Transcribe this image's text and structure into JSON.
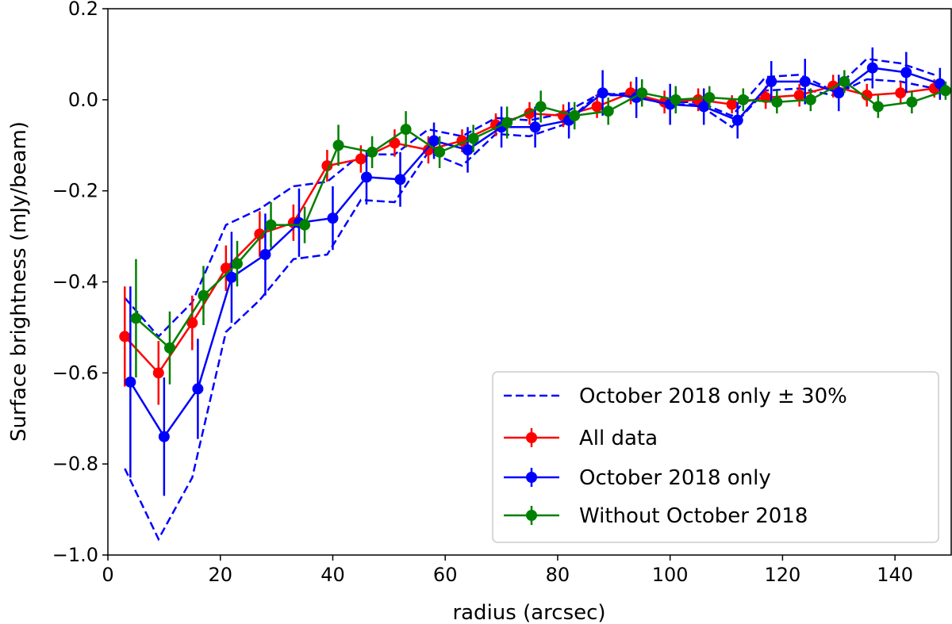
{
  "chart_data": {
    "type": "line",
    "title": "",
    "xlabel": "radius (arcsec)",
    "ylabel": "Surface brightness (mJy/beam)",
    "xlim": [
      0,
      150
    ],
    "ylim": [
      -1.0,
      0.2
    ],
    "x_ticks": [
      0,
      20,
      40,
      60,
      80,
      100,
      120,
      140
    ],
    "y_ticks": [
      -1.0,
      -0.8,
      -0.6,
      -0.4,
      -0.2,
      0.0,
      0.2
    ],
    "x_tick_labels": [
      "0",
      "20",
      "40",
      "60",
      "80",
      "100",
      "120",
      "140"
    ],
    "y_tick_labels": [
      "−1.0",
      "−0.8",
      "−0.6",
      "−0.4",
      "−0.2",
      "0.0",
      "0.2"
    ],
    "grid": false,
    "legend_position": "lower-right",
    "band": {
      "name": "October 2018 only ± 30%",
      "color": "#0000ff",
      "upper": [
        [
          3,
          -0.435
        ],
        [
          9,
          -0.52
        ],
        [
          15,
          -0.445
        ],
        [
          21,
          -0.275
        ],
        [
          27,
          -0.24
        ],
        [
          33,
          -0.19
        ],
        [
          39,
          -0.18
        ],
        [
          45,
          -0.12
        ],
        [
          51,
          -0.12
        ],
        [
          57,
          -0.065
        ],
        [
          63,
          -0.08
        ],
        [
          69,
          -0.04
        ],
        [
          75,
          -0.045
        ],
        [
          81,
          -0.03
        ],
        [
          87,
          0.01
        ],
        [
          93,
          0.01
        ],
        [
          99,
          -0.005
        ],
        [
          105,
          -0.005
        ],
        [
          111,
          -0.035
        ],
        [
          117,
          0.05
        ],
        [
          123,
          0.055
        ],
        [
          129,
          0.02
        ],
        [
          135,
          0.09
        ],
        [
          141,
          0.08
        ],
        [
          147,
          0.055
        ]
      ],
      "lower": [
        [
          3,
          -0.81
        ],
        [
          9,
          -0.965
        ],
        [
          15,
          -0.83
        ],
        [
          21,
          -0.51
        ],
        [
          27,
          -0.44
        ],
        [
          33,
          -0.35
        ],
        [
          39,
          -0.34
        ],
        [
          45,
          -0.22
        ],
        [
          51,
          -0.225
        ],
        [
          57,
          -0.115
        ],
        [
          63,
          -0.145
        ],
        [
          69,
          -0.075
        ],
        [
          75,
          -0.08
        ],
        [
          81,
          -0.055
        ],
        [
          87,
          0.01
        ],
        [
          93,
          0.015
        ],
        [
          99,
          -0.01
        ],
        [
          105,
          -0.01
        ],
        [
          111,
          -0.06
        ],
        [
          117,
          0.02
        ],
        [
          123,
          0.025
        ],
        [
          129,
          0.01
        ],
        [
          135,
          0.045
        ],
        [
          141,
          0.04
        ],
        [
          147,
          0.025
        ]
      ]
    },
    "series": [
      {
        "name": "All data",
        "color": "#ff0000",
        "x": [
          3,
          9,
          15,
          21,
          27,
          33,
          39,
          45,
          51,
          57,
          63,
          69,
          75,
          81,
          87,
          93,
          99,
          105,
          111,
          117,
          123,
          129,
          135,
          141,
          147
        ],
        "y": [
          -0.52,
          -0.6,
          -0.49,
          -0.37,
          -0.295,
          -0.27,
          -0.145,
          -0.13,
          -0.095,
          -0.11,
          -0.09,
          -0.055,
          -0.03,
          -0.035,
          -0.015,
          0.015,
          -0.005,
          0.0,
          -0.01,
          0.005,
          0.01,
          0.03,
          0.01,
          0.015,
          0.025
        ],
        "err": [
          0.11,
          0.07,
          0.06,
          0.05,
          0.05,
          0.04,
          0.035,
          0.03,
          0.03,
          0.03,
          0.025,
          0.025,
          0.025,
          0.025,
          0.025,
          0.025,
          0.025,
          0.025,
          0.02,
          0.025,
          0.025,
          0.025,
          0.025,
          0.025,
          0.02
        ]
      },
      {
        "name": "October 2018 only",
        "color": "#0000ff",
        "x": [
          4,
          10,
          16,
          22,
          28,
          34,
          40,
          46,
          52,
          58,
          64,
          70,
          76,
          82,
          88,
          94,
          100,
          106,
          112,
          118,
          124,
          130,
          136,
          142,
          148
        ],
        "y": [
          -0.62,
          -0.74,
          -0.635,
          -0.39,
          -0.34,
          -0.27,
          -0.26,
          -0.17,
          -0.175,
          -0.09,
          -0.11,
          -0.06,
          -0.06,
          -0.045,
          0.015,
          0.005,
          -0.01,
          -0.015,
          -0.045,
          0.04,
          0.04,
          0.015,
          0.07,
          0.06,
          0.035
        ],
        "err": [
          0.21,
          0.13,
          0.11,
          0.1,
          0.09,
          0.075,
          0.07,
          0.06,
          0.06,
          0.04,
          0.05,
          0.045,
          0.045,
          0.04,
          0.05,
          0.045,
          0.045,
          0.04,
          0.04,
          0.045,
          0.05,
          0.04,
          0.045,
          0.045,
          0.035
        ]
      },
      {
        "name": "Without October 2018",
        "color": "#008000",
        "x": [
          5,
          11,
          17,
          23,
          29,
          35,
          41,
          47,
          53,
          59,
          65,
          71,
          77,
          83,
          89,
          95,
          101,
          107,
          113,
          119,
          125,
          131,
          137,
          143,
          149
        ],
        "y": [
          -0.48,
          -0.545,
          -0.43,
          -0.36,
          -0.275,
          -0.275,
          -0.1,
          -0.115,
          -0.065,
          -0.115,
          -0.085,
          -0.05,
          -0.015,
          -0.035,
          -0.025,
          0.015,
          0.0,
          0.005,
          0.0,
          -0.005,
          0.0,
          0.04,
          -0.015,
          -0.005,
          0.02
        ],
        "err": [
          0.13,
          0.08,
          0.065,
          0.05,
          0.05,
          0.04,
          0.045,
          0.035,
          0.04,
          0.035,
          0.03,
          0.035,
          0.035,
          0.03,
          0.03,
          0.03,
          0.03,
          0.025,
          0.025,
          0.025,
          0.025,
          0.025,
          0.025,
          0.025,
          0.02
        ]
      }
    ]
  }
}
